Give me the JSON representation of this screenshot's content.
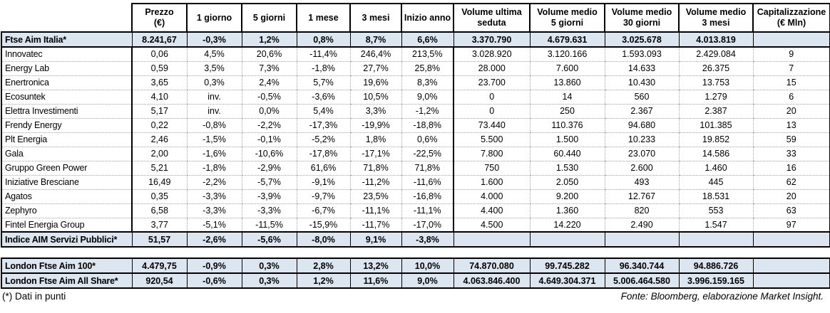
{
  "table": {
    "columns": [
      "Prezzo\n(€)",
      "1 giorno",
      "5 giorni",
      "1 mese",
      "3 mesi",
      "Inizio anno",
      "Volume ultima\nseduta",
      "Volume medio\n5 giorni",
      "Volume medio\n30 giorni",
      "Volume medio\n3 mesi",
      "Capitalizzazione\n(€ Mln)"
    ],
    "column_keys": [
      "prezzo",
      "1-giorno",
      "5-giorni",
      "1-mese",
      "3-mesi",
      "inizio-anno",
      "volume-ultima-seduta",
      "volume-medio-5-giorni",
      "volume-medio-30-giorni",
      "volume-medio-3-mesi",
      "capitalizzazione"
    ],
    "main_rows": [
      {
        "name": "Ftse Aim Italia*",
        "type": "index",
        "values": [
          "8.241,67",
          "-0,3%",
          "1,2%",
          "0,8%",
          "8,7%",
          "6,6%",
          "3.370.790",
          "4.679.631",
          "3.025.678",
          "4.013.819",
          ""
        ]
      },
      {
        "name": "Innovatec",
        "type": "stock",
        "values": [
          "0,06",
          "4,5%",
          "20,6%",
          "-11,4%",
          "246,4%",
          "213,5%",
          "3.028.920",
          "3.120.166",
          "1.593.093",
          "2.429.084",
          "9"
        ]
      },
      {
        "name": "Energy Lab",
        "type": "stock",
        "values": [
          "0,59",
          "3,5%",
          "7,3%",
          "-1,8%",
          "27,7%",
          "25,8%",
          "28.000",
          "7.600",
          "14.633",
          "26.375",
          "7"
        ]
      },
      {
        "name": "Enertronica",
        "type": "stock",
        "values": [
          "3,65",
          "0,3%",
          "2,4%",
          "5,7%",
          "19,6%",
          "8,3%",
          "23.700",
          "13.860",
          "10.430",
          "13.753",
          "15"
        ]
      },
      {
        "name": "Ecosuntek",
        "type": "stock",
        "values": [
          "4,10",
          "inv.",
          "-0,5%",
          "-3,6%",
          "10,5%",
          "9,0%",
          "0",
          "14",
          "560",
          "1.279",
          "6"
        ]
      },
      {
        "name": "Elettra Investimenti",
        "type": "stock",
        "values": [
          "5,17",
          "inv.",
          "0,0%",
          "5,4%",
          "3,3%",
          "-1,2%",
          "0",
          "250",
          "2.367",
          "2.387",
          "20"
        ]
      },
      {
        "name": "Frendy Energy",
        "type": "stock",
        "values": [
          "0,22",
          "-0,8%",
          "-2,2%",
          "-17,3%",
          "-19,9%",
          "-18,8%",
          "73.440",
          "110.376",
          "94.680",
          "101.385",
          "13"
        ]
      },
      {
        "name": "Plt Energia",
        "type": "stock",
        "values": [
          "2,46",
          "-1,5%",
          "-0,1%",
          "-5,2%",
          "1,8%",
          "0,6%",
          "5.500",
          "1.500",
          "10.233",
          "19.852",
          "59"
        ]
      },
      {
        "name": "Gala",
        "type": "stock",
        "values": [
          "2,00",
          "-1,6%",
          "-10,6%",
          "-17,8%",
          "-17,1%",
          "-22,5%",
          "7.800",
          "60.440",
          "23.070",
          "14.586",
          "33"
        ]
      },
      {
        "name": "Gruppo Green Power",
        "type": "stock",
        "values": [
          "5,21",
          "-1,8%",
          "-2,9%",
          "61,6%",
          "71,8%",
          "71,8%",
          "750",
          "1.530",
          "2.600",
          "1.460",
          "16"
        ]
      },
      {
        "name": "Iniziative Bresciane",
        "type": "stock",
        "values": [
          "16,49",
          "-2,2%",
          "-5,7%",
          "-9,1%",
          "-11,2%",
          "-11,6%",
          "1.600",
          "2.050",
          "493",
          "445",
          "62"
        ]
      },
      {
        "name": "Agatos",
        "type": "stock",
        "values": [
          "0,35",
          "-3,3%",
          "-3,9%",
          "-9,7%",
          "23,5%",
          "-16,8%",
          "4.000",
          "9.200",
          "12.767",
          "18.531",
          "20"
        ]
      },
      {
        "name": "Zephyro",
        "type": "stock",
        "values": [
          "6,58",
          "-3,3%",
          "-3,3%",
          "-6,7%",
          "-11,1%",
          "-11,1%",
          "4.400",
          "1.360",
          "820",
          "553",
          "63"
        ]
      },
      {
        "name": "Fintel Energia Group",
        "type": "stock",
        "values": [
          "3,77",
          "-5,1%",
          "-11,5%",
          "-15,9%",
          "-11,7%",
          "-17,0%",
          "4.500",
          "14.220",
          "2.490",
          "1.547",
          "97"
        ]
      },
      {
        "name": "Indice AIM Servizi Pubblici*",
        "type": "index",
        "values": [
          "51,57",
          "-2,6%",
          "-5,6%",
          "-8,0%",
          "9,1%",
          "-3,8%",
          "",
          "",
          "",
          "",
          ""
        ]
      }
    ],
    "london_rows": [
      {
        "name": "London Ftse Aim 100*",
        "type": "index",
        "values": [
          "4.479,75",
          "-0,9%",
          "0,3%",
          "2,8%",
          "13,2%",
          "10,0%",
          "74.870.080",
          "99.745.282",
          "96.340.744",
          "94.886.726",
          ""
        ]
      },
      {
        "name": "London Ftse Aim All Share*",
        "type": "index",
        "values": [
          "920,54",
          "-0,6%",
          "0,3%",
          "1,2%",
          "11,6%",
          "9,0%",
          "4.063.846.400",
          "4.649.304.371",
          "5.006.464.580",
          "3.996.159.165",
          ""
        ]
      }
    ],
    "shaded_value_columns": [
      1,
      6
    ]
  },
  "footnotes": {
    "left": "(*) Dati in punti",
    "right": "Fonte: Bloomberg, elaborazione Market Insight."
  },
  "colors": {
    "shaded_cell": "#dce6f1",
    "grid_dotted": "#a6a6a6",
    "border": "#000000",
    "background": "#ffffff"
  }
}
